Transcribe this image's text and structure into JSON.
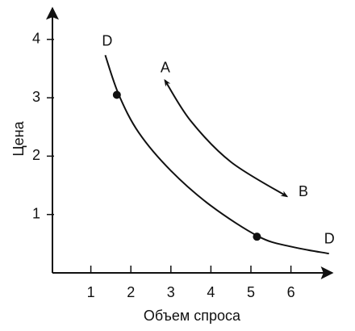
{
  "chart_data": {
    "type": "line",
    "xlabel": "Объем спроса",
    "ylabel": "Цена",
    "xlim": [
      0,
      7
    ],
    "ylim": [
      0,
      4.5
    ],
    "xticks": [
      1,
      2,
      3,
      4,
      5,
      6
    ],
    "yticks": [
      1,
      2,
      3,
      4
    ],
    "series": [
      {
        "color": "#111111",
        "x": [
          1.36,
          1.7,
          2.2,
          3.0,
          4.0,
          5.2,
          6.0,
          6.95
        ],
        "values": [
          3.73,
          3.05,
          2.4,
          1.75,
          1.15,
          0.62,
          0.45,
          0.33
        ]
      },
      {
        "color": "#111111",
        "x": [
          2.85,
          3.5,
          4.5,
          5.9
        ],
        "values": [
          3.3,
          2.6,
          1.9,
          1.31
        ],
        "arrows": "both"
      },
      {
        "color": "#111111",
        "x": [
          1.65,
          5.15
        ],
        "values": [
          3.05,
          0.62
        ],
        "markers": true
      }
    ],
    "annotations": [
      {
        "text": "D",
        "x": 1.41,
        "y": 3.96
      },
      {
        "text": "D",
        "x": 6.96,
        "y": 0.57
      },
      {
        "text": "A",
        "x": 2.86,
        "y": 3.5
      },
      {
        "text": "B",
        "x": 6.31,
        "y": 1.38
      }
    ]
  }
}
